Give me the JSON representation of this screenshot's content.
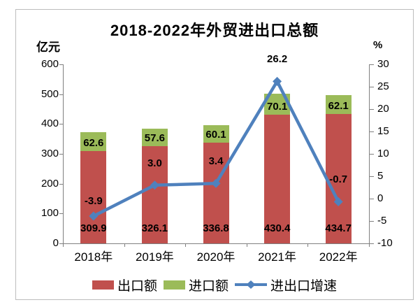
{
  "chart_data": {
    "type": "combo: stacked bar + line",
    "title": "2018-2022年外贸进出口总额",
    "categories": [
      "2018年",
      "2019年",
      "2020年",
      "2021年",
      "2022年"
    ],
    "left_axis": {
      "unit": "亿元",
      "min": 0,
      "max": 600,
      "step": 100,
      "ticks": [
        600,
        500,
        400,
        300,
        200,
        100,
        0
      ]
    },
    "right_axis": {
      "unit": "%",
      "min": -10,
      "max": 30,
      "step": 5,
      "ticks": [
        30,
        25,
        20,
        15,
        10,
        5,
        0,
        -5,
        -10
      ]
    },
    "series": [
      {
        "name": "出口额",
        "type": "bar-stack",
        "axis": "left",
        "color": "#c0504d",
        "values": [
          309.9,
          326.1,
          336.8,
          430.4,
          434.7
        ],
        "labels": [
          "309.9",
          "326.1",
          "336.8",
          "430.4",
          "434.7"
        ]
      },
      {
        "name": "进口额",
        "type": "bar-stack",
        "axis": "left",
        "color": "#9bbb59",
        "values": [
          62.6,
          57.6,
          60.1,
          70.1,
          62.1
        ],
        "labels": [
          "62.6",
          "57.6",
          "60.1",
          "70.1",
          "62.1"
        ]
      },
      {
        "name": "进出口增速",
        "type": "line",
        "axis": "right",
        "color": "#4f81bd",
        "values": [
          -3.9,
          3.0,
          3.4,
          26.2,
          -0.7
        ],
        "labels": [
          "-3.9",
          "3.0",
          "3.4",
          "26.2",
          "-0.7"
        ]
      }
    ],
    "legend": {
      "position": "bottom"
    },
    "grid": "off",
    "axis_color": "#808080"
  }
}
